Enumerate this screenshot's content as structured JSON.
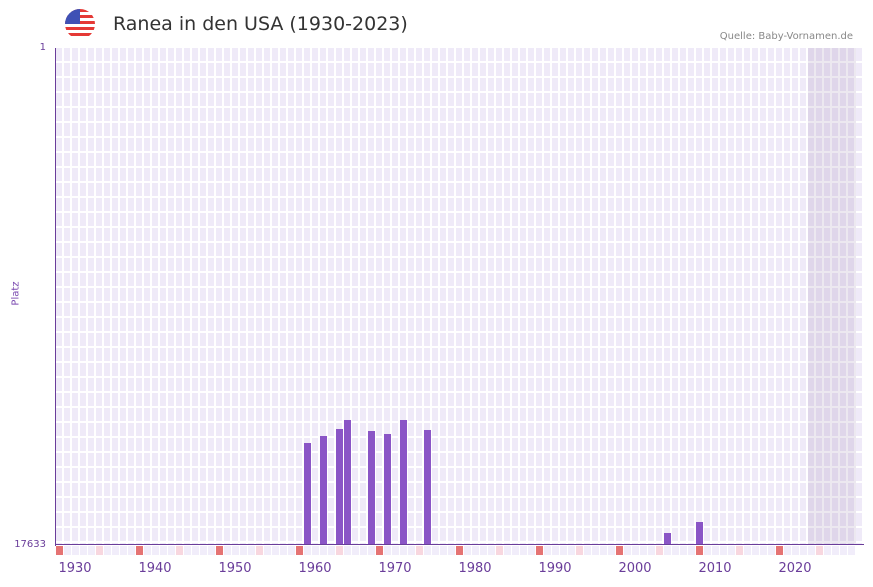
{
  "header": {
    "title": "Ranea in den USA (1930-2023)",
    "source": "Quelle: Baby-Vornamen.de",
    "flag_icon": "us-flag-icon"
  },
  "colors": {
    "bar": "#8a55c6",
    "axis": "#6a3d9a",
    "decade_marker": "#e57373",
    "half_decade_marker": "#f8d7df",
    "grid_cell": "#efeaf8"
  },
  "chart_data": {
    "type": "bar",
    "title": "Ranea in den USA (1930-2023)",
    "xlabel": "",
    "ylabel": "Platz",
    "y_inverted": true,
    "ylim": [
      1,
      17633
    ],
    "y_ticks": [
      "1",
      "17633"
    ],
    "x_ticks": [
      "1930",
      "1940",
      "1950",
      "1960",
      "1970",
      "1980",
      "1990",
      "2000",
      "2010",
      "2020"
    ],
    "x_range": [
      1928,
      2028
    ],
    "grid": true,
    "shaded_range": [
      2022,
      2028
    ],
    "categories": [
      "1959",
      "1961",
      "1963",
      "1964",
      "1967",
      "1969",
      "1971",
      "1974",
      "2004",
      "2008"
    ],
    "values": [
      14010,
      13770,
      13520,
      13200,
      13590,
      13700,
      13200,
      13550,
      17210,
      16820
    ]
  }
}
